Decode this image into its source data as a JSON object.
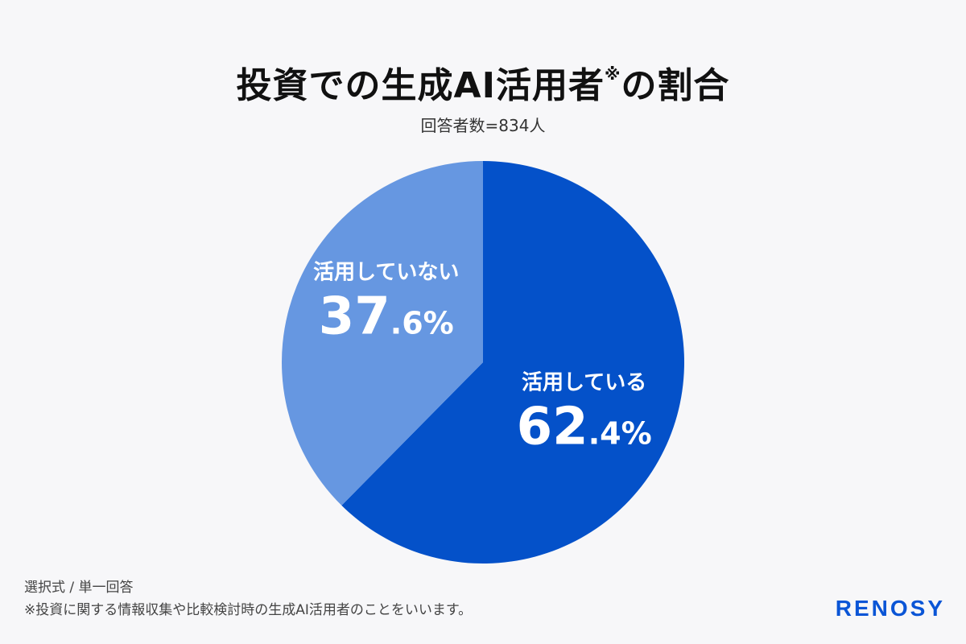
{
  "title": {
    "main": "投資での生成AI活用者",
    "mark": "※",
    "suffix": "の割合"
  },
  "subtitle": "回答者数=834人",
  "chart_data": {
    "type": "pie",
    "start_angle_deg": 0,
    "direction": "clockwise",
    "slices": [
      {
        "label": "活用している",
        "value": 62.4,
        "value_int": "62",
        "value_dec": ".4",
        "unit": "%",
        "color": "#0451c9"
      },
      {
        "label": "活用していない",
        "value": 37.6,
        "value_int": "37",
        "value_dec": ".6",
        "unit": "%",
        "color": "#6697e1"
      }
    ]
  },
  "footer": {
    "line1": "選択式 / 単一回答",
    "line2": "※投資に関する情報収集や比較検討時の生成AI活用者のことをいいます。"
  },
  "logo": "RENOSY"
}
